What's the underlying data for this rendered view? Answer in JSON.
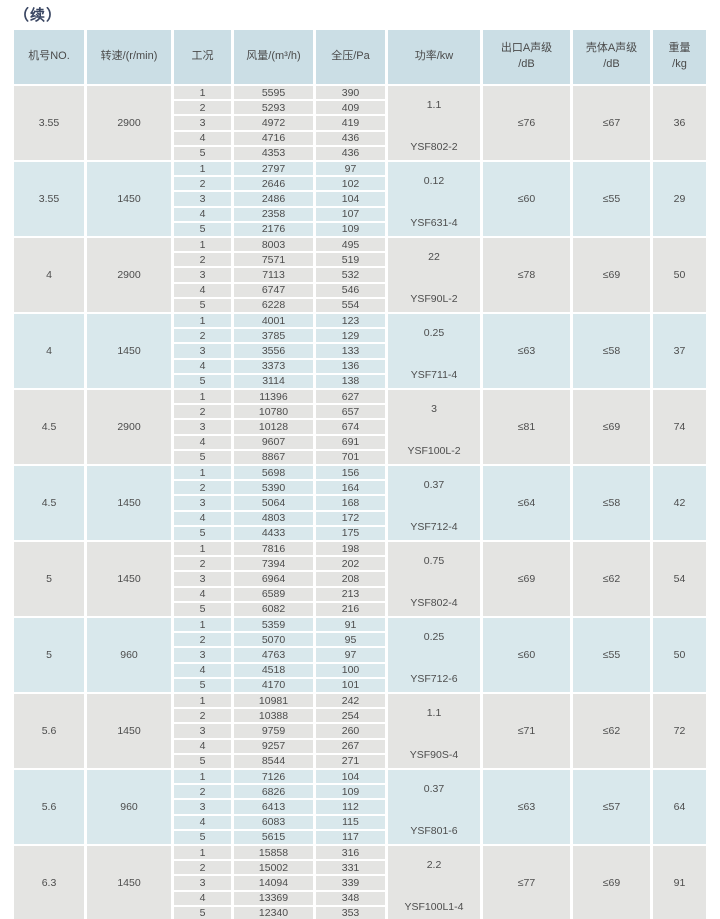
{
  "page": {
    "title": "（续）"
  },
  "colors": {
    "header_bg": "#cbdee5",
    "row_gray_bg": "#e4e4e2",
    "row_blue_bg": "#d9e8ec",
    "text": "#4d4d4d",
    "title_text": "#3a4662"
  },
  "table": {
    "columns": [
      {
        "line1": "机号NO.",
        "line2": ""
      },
      {
        "line1": "转速/(r/min)",
        "line2": ""
      },
      {
        "line1": "工况",
        "line2": ""
      },
      {
        "line1": "风量/(m³/h)",
        "line2": ""
      },
      {
        "line1": "全压/Pa",
        "line2": ""
      },
      {
        "line1": "功率/kw",
        "line2": ""
      },
      {
        "line1": "出口A声级",
        "line2": "/dB"
      },
      {
        "line1": "壳体A声级",
        "line2": "/dB"
      },
      {
        "line1": "重量",
        "line2": "/kg"
      }
    ],
    "work_conditions": [
      "1",
      "2",
      "3",
      "4",
      "5"
    ],
    "groups": [
      {
        "size": "3.55",
        "speed": "2900",
        "volumes": [
          "5595",
          "5293",
          "4972",
          "4716",
          "4353"
        ],
        "pressures": [
          "390",
          "409",
          "419",
          "436",
          "436"
        ],
        "power": "1.1",
        "motor": "YSF802-2",
        "outlet_db": "≤76",
        "casing_db": "≤67",
        "weight": "36"
      },
      {
        "size": "3.55",
        "speed": "1450",
        "volumes": [
          "2797",
          "2646",
          "2486",
          "2358",
          "2176"
        ],
        "pressures": [
          "97",
          "102",
          "104",
          "107",
          "109"
        ],
        "power": "0.12",
        "motor": "YSF631-4",
        "outlet_db": "≤60",
        "casing_db": "≤55",
        "weight": "29"
      },
      {
        "size": "4",
        "speed": "2900",
        "volumes": [
          "8003",
          "7571",
          "7113",
          "6747",
          "6228"
        ],
        "pressures": [
          "495",
          "519",
          "532",
          "546",
          "554"
        ],
        "power": "22",
        "motor": "YSF90L-2",
        "outlet_db": "≤78",
        "casing_db": "≤69",
        "weight": "50"
      },
      {
        "size": "4",
        "speed": "1450",
        "volumes": [
          "4001",
          "3785",
          "3556",
          "3373",
          "3114"
        ],
        "pressures": [
          "123",
          "129",
          "133",
          "136",
          "138"
        ],
        "power": "0.25",
        "motor": "YSF711-4",
        "outlet_db": "≤63",
        "casing_db": "≤58",
        "weight": "37"
      },
      {
        "size": "4.5",
        "speed": "2900",
        "volumes": [
          "11396",
          "10780",
          "10128",
          "9607",
          "8867"
        ],
        "pressures": [
          "627",
          "657",
          "674",
          "691",
          "701"
        ],
        "power": "3",
        "motor": "YSF100L-2",
        "outlet_db": "≤81",
        "casing_db": "≤69",
        "weight": "74"
      },
      {
        "size": "4.5",
        "speed": "1450",
        "volumes": [
          "5698",
          "5390",
          "5064",
          "4803",
          "4433"
        ],
        "pressures": [
          "156",
          "164",
          "168",
          "172",
          "175"
        ],
        "power": "0.37",
        "motor": "YSF712-4",
        "outlet_db": "≤64",
        "casing_db": "≤58",
        "weight": "42"
      },
      {
        "size": "5",
        "speed": "1450",
        "volumes": [
          "7816",
          "7394",
          "6964",
          "6589",
          "6082"
        ],
        "pressures": [
          "198",
          "202",
          "208",
          "213",
          "216"
        ],
        "power": "0.75",
        "motor": "YSF802-4",
        "outlet_db": "≤69",
        "casing_db": "≤62",
        "weight": "54"
      },
      {
        "size": "5",
        "speed": "960",
        "volumes": [
          "5359",
          "5070",
          "4763",
          "4518",
          "4170"
        ],
        "pressures": [
          "91",
          "95",
          "97",
          "100",
          "101"
        ],
        "power": "0.25",
        "motor": "YSF712-6",
        "outlet_db": "≤60",
        "casing_db": "≤55",
        "weight": "50"
      },
      {
        "size": "5.6",
        "speed": "1450",
        "volumes": [
          "10981",
          "10388",
          "9759",
          "9257",
          "8544"
        ],
        "pressures": [
          "242",
          "254",
          "260",
          "267",
          "271"
        ],
        "power": "1.1",
        "motor": "YSF90S-4",
        "outlet_db": "≤71",
        "casing_db": "≤62",
        "weight": "72"
      },
      {
        "size": "5.6",
        "speed": "960",
        "volumes": [
          "7126",
          "6826",
          "6413",
          "6083",
          "5615"
        ],
        "pressures": [
          "104",
          "109",
          "112",
          "115",
          "117"
        ],
        "power": "0.37",
        "motor": "YSF801-6",
        "outlet_db": "≤63",
        "casing_db": "≤57",
        "weight": "64"
      },
      {
        "size": "6.3",
        "speed": "1450",
        "volumes": [
          "15858",
          "15002",
          "14094",
          "13369",
          "12340"
        ],
        "pressures": [
          "316",
          "331",
          "339",
          "348",
          "353"
        ],
        "power": "2.2",
        "motor": "YSF100L1-4",
        "outlet_db": "≤77",
        "casing_db": "≤69",
        "weight": "91"
      }
    ]
  }
}
